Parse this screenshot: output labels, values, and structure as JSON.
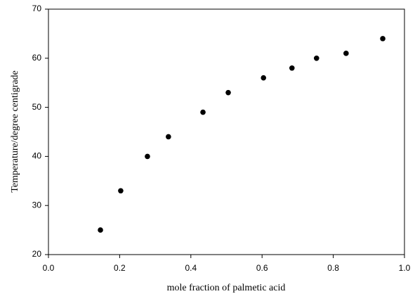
{
  "chart_data": {
    "type": "scatter",
    "xlabel": "mole fraction of palmetic acid",
    "ylabel": "Temperature/degree centigrade",
    "series": [
      {
        "color": "#000000",
        "x": [
          0.146,
          0.203,
          0.278,
          0.337,
          0.434,
          0.505,
          0.604,
          0.684,
          0.753,
          0.836,
          0.939
        ],
        "values": [
          25,
          33,
          40,
          44,
          49,
          53,
          56,
          58,
          60,
          61,
          64
        ]
      }
    ],
    "xlim": [
      0,
      1
    ],
    "xticks": [
      {
        "value": 0,
        "label": "0.0"
      },
      0.2,
      0.4,
      0.6,
      0.8,
      {
        "value": 1,
        "label": "1.0"
      }
    ],
    "ylim": [
      20,
      70
    ],
    "yticks": [
      20,
      30,
      40,
      50,
      60,
      70
    ]
  }
}
